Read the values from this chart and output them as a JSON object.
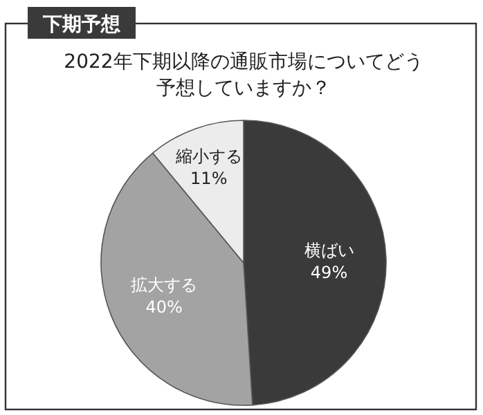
{
  "chart_data": {
    "type": "pie",
    "subtitle": "下期予想",
    "title": "2022年下期以降の通販市場についてどう予想していますか？",
    "categories": [
      "横ばい",
      "拡大する",
      "縮小する"
    ],
    "values": [
      49,
      40,
      11
    ],
    "value_labels": [
      "49%",
      "40%",
      "11%"
    ],
    "colors": [
      "#3a3a3a",
      "#a3a3a3",
      "#ececec"
    ]
  }
}
